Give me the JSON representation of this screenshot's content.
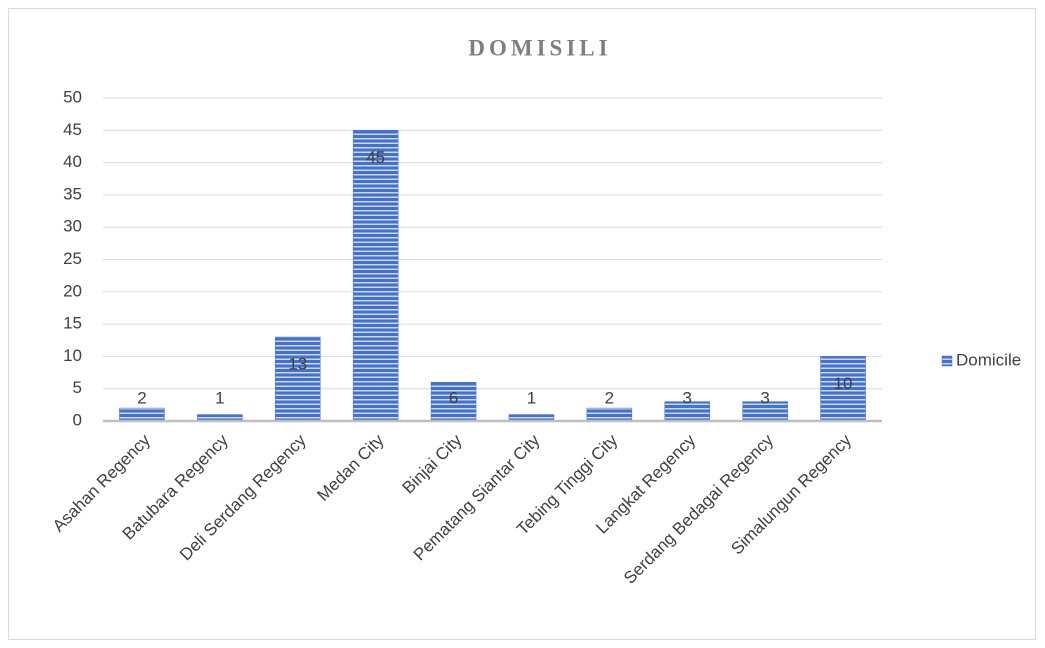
{
  "chart_data": {
    "type": "bar",
    "title": "DOMISILI",
    "categories": [
      "Asahan Regency",
      "Batubara Regency",
      "Deli Serdang Regency",
      "Medan City",
      "Binjai City",
      "Pematang Siantar City",
      "Tebing Tinggi City",
      "Langkat Regency",
      "Serdang Bedagai Regency",
      "Simalungun Regency"
    ],
    "series": [
      {
        "name": "Domicile",
        "color": "#4472c4",
        "values": [
          2,
          1,
          13,
          45,
          6,
          1,
          2,
          3,
          3,
          10
        ]
      }
    ],
    "ylim": [
      0,
      50
    ],
    "yticks": [
      0,
      5,
      10,
      15,
      20,
      25,
      30,
      35,
      40,
      45,
      50
    ],
    "grid": true,
    "legend": "right"
  }
}
